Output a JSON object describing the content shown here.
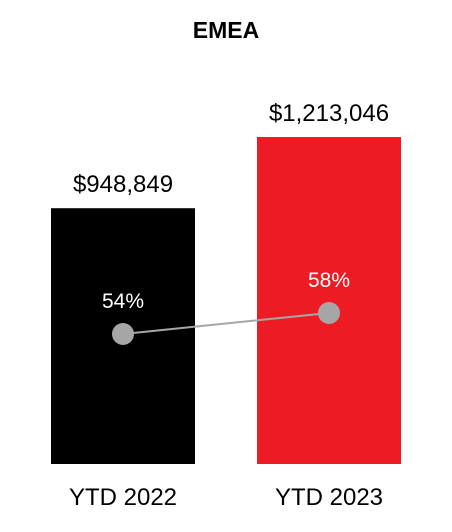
{
  "chart_data": {
    "type": "bar",
    "title": "EMEA",
    "categories": [
      "YTD 2022",
      "YTD 2023"
    ],
    "values": [
      948849,
      1213046
    ],
    "value_labels": [
      "$948,849",
      "$1,213,046"
    ],
    "bar_colors": [
      "#000000",
      "#ed1c24"
    ],
    "ylim": [
      0,
      1300000
    ],
    "grid": false,
    "overlay_line": {
      "type": "line",
      "values": [
        54,
        58
      ],
      "labels": [
        "54%",
        "58%"
      ],
      "color": "#a6a6a6"
    }
  }
}
